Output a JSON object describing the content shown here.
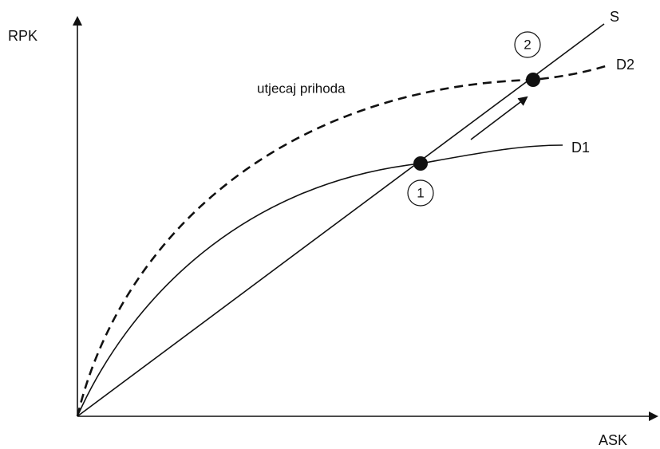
{
  "axes": {
    "y_label": "RPK",
    "x_label": "ASK"
  },
  "curves": {
    "s": "S",
    "d1": "D1",
    "d2": "D2"
  },
  "annotation": "utjecaj prihoda",
  "points": [
    "1",
    "2"
  ]
}
